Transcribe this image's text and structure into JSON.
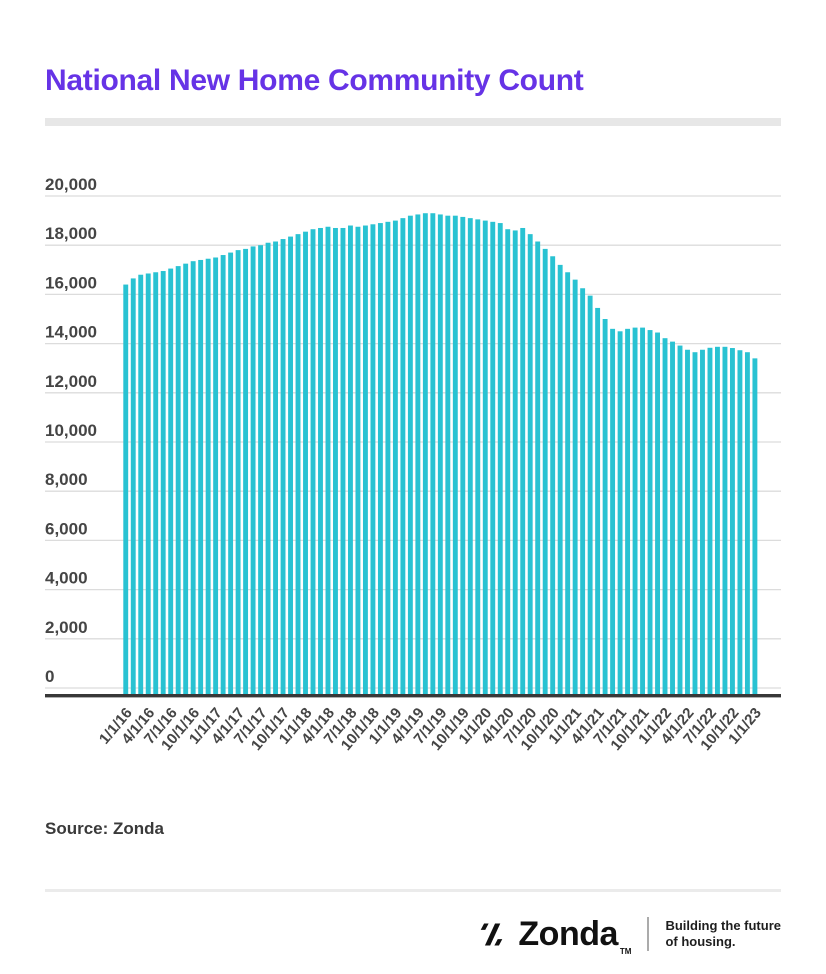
{
  "title": "National New Home Community Count",
  "source_label": "Source: Zonda",
  "footer": {
    "brand": "Zonda",
    "trademark": "TM",
    "tagline_line1": "Building the future",
    "tagline_line2": "of housing."
  },
  "colors": {
    "title": "#6633E6",
    "bar": "#29C2D2",
    "gridline": "#DCDCDC",
    "baseline": "#383838",
    "axis_text": "#454545"
  },
  "chart_data": {
    "type": "bar",
    "title": "National New Home Community Count",
    "xlabel": "",
    "ylabel": "",
    "ylim": [
      0,
      20000
    ],
    "ytick_step": 2000,
    "grid": "horizontal",
    "legend": "none",
    "y_tick_labels": [
      "0",
      "2,000",
      "4,000",
      "6,000",
      "8,000",
      "10,000",
      "12,000",
      "14,000",
      "16,000",
      "18,000",
      "20,000"
    ],
    "x_tick_every_months": 3,
    "x": [
      "1/1/16",
      "2/1/16",
      "3/1/16",
      "4/1/16",
      "5/1/16",
      "6/1/16",
      "7/1/16",
      "8/1/16",
      "9/1/16",
      "10/1/16",
      "11/1/16",
      "12/1/16",
      "1/1/17",
      "2/1/17",
      "3/1/17",
      "4/1/17",
      "5/1/17",
      "6/1/17",
      "7/1/17",
      "8/1/17",
      "9/1/17",
      "10/1/17",
      "11/1/17",
      "12/1/17",
      "1/1/18",
      "2/1/18",
      "3/1/18",
      "4/1/18",
      "5/1/18",
      "6/1/18",
      "7/1/18",
      "8/1/18",
      "9/1/18",
      "10/1/18",
      "11/1/18",
      "12/1/18",
      "1/1/19",
      "2/1/19",
      "3/1/19",
      "4/1/19",
      "5/1/19",
      "6/1/19",
      "7/1/19",
      "8/1/19",
      "9/1/19",
      "10/1/19",
      "11/1/19",
      "12/1/19",
      "1/1/20",
      "2/1/20",
      "3/1/20",
      "4/1/20",
      "5/1/20",
      "6/1/20",
      "7/1/20",
      "8/1/20",
      "9/1/20",
      "10/1/20",
      "11/1/20",
      "12/1/20",
      "1/1/21",
      "2/1/21",
      "3/1/21",
      "4/1/21",
      "5/1/21",
      "6/1/21",
      "7/1/21",
      "8/1/21",
      "9/1/21",
      "10/1/21",
      "11/1/21",
      "12/1/21",
      "1/1/22",
      "2/1/22",
      "3/1/22",
      "4/1/22",
      "5/1/22",
      "6/1/22",
      "7/1/22",
      "8/1/22",
      "9/1/22",
      "10/1/22",
      "11/1/22",
      "12/1/22",
      "1/1/23"
    ],
    "values": [
      16400,
      16650,
      16800,
      16850,
      16900,
      16950,
      17050,
      17150,
      17250,
      17350,
      17400,
      17450,
      17500,
      17600,
      17700,
      17800,
      17850,
      17950,
      18000,
      18100,
      18150,
      18250,
      18350,
      18450,
      18550,
      18650,
      18700,
      18750,
      18700,
      18700,
      18800,
      18750,
      18800,
      18850,
      18900,
      18950,
      19000,
      19100,
      19200,
      19250,
      19300,
      19300,
      19250,
      19200,
      19200,
      19150,
      19100,
      19050,
      19000,
      18950,
      18900,
      18650,
      18600,
      18700,
      18450,
      18150,
      17850,
      17550,
      17200,
      16900,
      16600,
      16250,
      15950,
      15450,
      15000,
      14600,
      14500,
      14600,
      14650,
      14650,
      14550,
      14450,
      14220,
      14080,
      13920,
      13750,
      13650,
      13750,
      13830,
      13870,
      13870,
      13820,
      13730,
      13650,
      13400
    ]
  }
}
